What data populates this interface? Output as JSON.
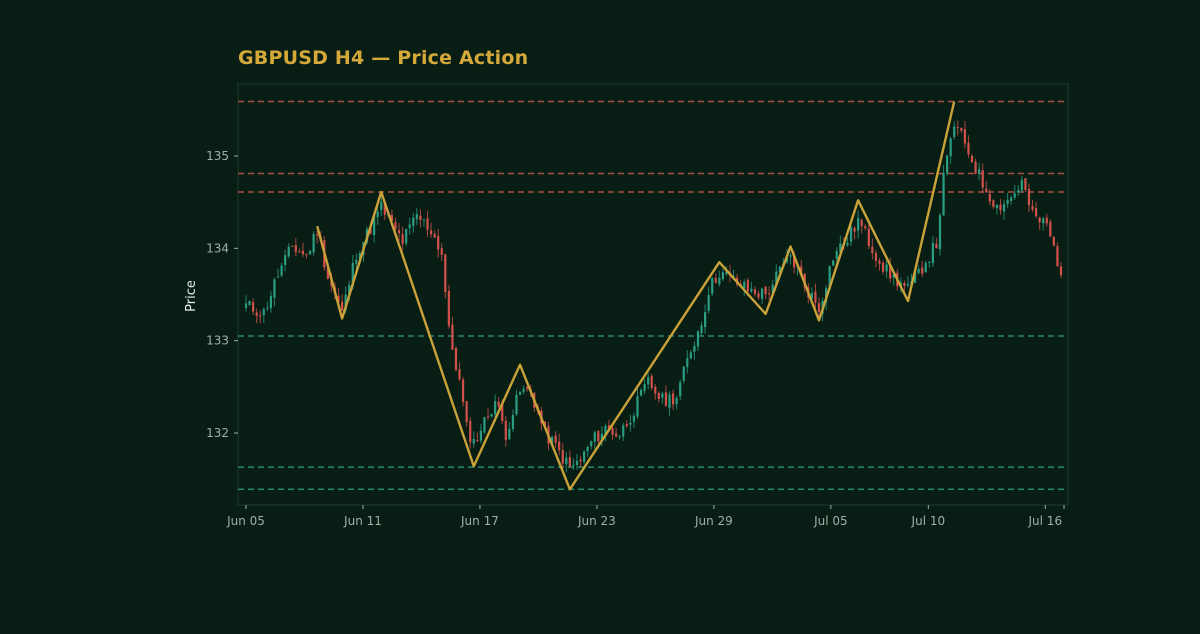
{
  "chart_data": {
    "type": "candlestick",
    "title": "GBPUSD H4 — Price Action",
    "xlabel": "",
    "ylabel": "Price",
    "x_ticks": [
      "Jun 05",
      "Jun 11",
      "Jun 17",
      "Jun 23",
      "Jun 29",
      "Jul 05",
      "Jul 10",
      "Jul 16"
    ],
    "y_ticks": [
      132,
      133,
      134,
      135
    ],
    "ylim": [
      131.22,
      135.78
    ],
    "grid": false,
    "legend": "none",
    "candle_count": 230,
    "colors": {
      "background": "#081e14",
      "plot_border": "#1b3a30",
      "title": "#d4a93a",
      "bull": "#2a9d82",
      "bear": "#d2524b",
      "zigzag": "#c9a23a",
      "resistance": "#c8584d",
      "support": "#2f9a80",
      "axis_text": "#9fb0a8",
      "label_text": "#e8ecea"
    },
    "resistance_levels": [
      135.59,
      134.81,
      134.61
    ],
    "support_levels": [
      133.05,
      131.63,
      131.39
    ],
    "zigzag_pivots": [
      {
        "i": 20,
        "price": 134.24
      },
      {
        "i": 27,
        "price": 133.24
      },
      {
        "i": 38,
        "price": 134.61
      },
      {
        "i": 64,
        "price": 131.64
      },
      {
        "i": 77,
        "price": 132.74
      },
      {
        "i": 91,
        "price": 131.39
      },
      {
        "i": 133,
        "price": 133.85
      },
      {
        "i": 146,
        "price": 133.29
      },
      {
        "i": 153,
        "price": 134.02
      },
      {
        "i": 161,
        "price": 133.22
      },
      {
        "i": 172,
        "price": 134.52
      },
      {
        "i": 186,
        "price": 133.43
      },
      {
        "i": 199,
        "price": 135.59
      }
    ],
    "anchors": [
      [
        0,
        133.38
      ],
      [
        5,
        133.3
      ],
      [
        9,
        133.72
      ],
      [
        13,
        134.02
      ],
      [
        17,
        133.92
      ],
      [
        20,
        134.2
      ],
      [
        23,
        133.7
      ],
      [
        27,
        133.3
      ],
      [
        31,
        133.95
      ],
      [
        34,
        134.15
      ],
      [
        38,
        134.45
      ],
      [
        41,
        134.25
      ],
      [
        44,
        134.08
      ],
      [
        48,
        134.35
      ],
      [
        52,
        134.2
      ],
      [
        55,
        133.95
      ],
      [
        57,
        133.1
      ],
      [
        60,
        132.55
      ],
      [
        62,
        132.05
      ],
      [
        64,
        131.9
      ],
      [
        67,
        132.12
      ],
      [
        70,
        132.35
      ],
      [
        73,
        132.0
      ],
      [
        77,
        132.45
      ],
      [
        80,
        132.45
      ],
      [
        84,
        132.0
      ],
      [
        87,
        131.85
      ],
      [
        91,
        131.62
      ],
      [
        94,
        131.7
      ],
      [
        97,
        131.9
      ],
      [
        101,
        132.05
      ],
      [
        105,
        131.98
      ],
      [
        109,
        132.25
      ],
      [
        113,
        132.55
      ],
      [
        117,
        132.35
      ],
      [
        121,
        132.4
      ],
      [
        125,
        132.9
      ],
      [
        128,
        133.2
      ],
      [
        130,
        133.55
      ],
      [
        133,
        133.75
      ],
      [
        137,
        133.65
      ],
      [
        141,
        133.55
      ],
      [
        146,
        133.5
      ],
      [
        150,
        133.75
      ],
      [
        153,
        133.92
      ],
      [
        157,
        133.6
      ],
      [
        161,
        133.35
      ],
      [
        165,
        133.92
      ],
      [
        169,
        134.1
      ],
      [
        172,
        134.3
      ],
      [
        176,
        134.0
      ],
      [
        180,
        133.75
      ],
      [
        186,
        133.55
      ],
      [
        190,
        133.8
      ],
      [
        194,
        134.05
      ],
      [
        196,
        134.75
      ],
      [
        199,
        135.35
      ],
      [
        203,
        135.05
      ],
      [
        207,
        134.7
      ],
      [
        211,
        134.45
      ],
      [
        215,
        134.55
      ],
      [
        218,
        134.72
      ],
      [
        221,
        134.35
      ],
      [
        225,
        134.25
      ],
      [
        229,
        133.75
      ]
    ]
  }
}
